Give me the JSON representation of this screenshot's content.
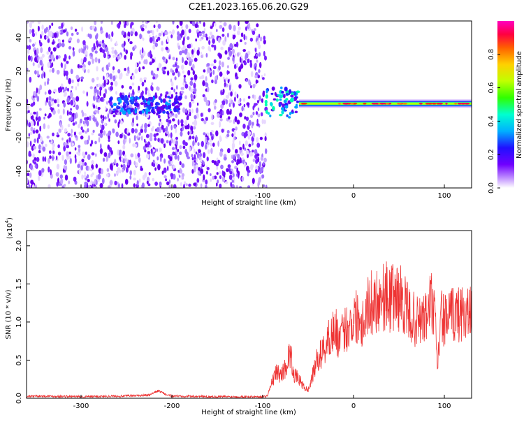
{
  "title": "C2E1.2023.165.06.20.G29",
  "chart_data": [
    {
      "type": "heatmap",
      "ylabel": "Frequency (Hz)",
      "xlabel": "Height of straight line (km)",
      "xlim": [
        -360,
        130
      ],
      "ylim": [
        -50,
        50
      ],
      "x_ticks": [
        -300,
        -200,
        -100,
        0,
        100
      ],
      "y_ticks": [
        -40,
        -20,
        0,
        20,
        40
      ],
      "colorbar": {
        "label": "Normalized spectral amplitude",
        "range": [
          0,
          1
        ],
        "ticks": [
          "0.0",
          "0.2",
          "0.4",
          "0.6",
          "0.8"
        ],
        "colors": [
          "#ffffff",
          "#b070ff",
          "#7000ff",
          "#2010ff",
          "#00b0ff",
          "#00ffc0",
          "#30ff00",
          "#c0ff00",
          "#ffd000",
          "#ff6000",
          "#ff0040",
          "#ff00c0"
        ]
      },
      "regions": [
        {
          "x": [
            -360,
            -96
          ],
          "freq_range": [
            -50,
            50
          ],
          "amplitude": 0.1
        },
        {
          "x": [
            -268,
            -190
          ],
          "freq_range": [
            -5,
            5
          ],
          "amplitude": 0.3
        },
        {
          "x": [
            -97,
            -60
          ],
          "freq_range": [
            -8,
            10
          ],
          "amplitude": 0.45
        },
        {
          "x": [
            -60,
            130
          ],
          "freq_center": 0.5,
          "amplitude": 0.9
        }
      ],
      "grid": false
    },
    {
      "type": "line",
      "ylabel": "SNR (10 * v/v)",
      "y_multiplier": "(x10",
      "y_multiplier_exp": "4",
      "y_multiplier_close": ")",
      "xlabel": "Height of straight line (km)",
      "xlim": [
        -360,
        130
      ],
      "ylim": [
        0,
        2.2
      ],
      "x_ticks": [
        -300,
        -200,
        -100,
        0,
        100
      ],
      "y_ticks": [
        "0.0",
        "0.5",
        "1.0",
        "1.5",
        "2.0"
      ],
      "color": "#ee3333",
      "series": [
        {
          "x": [
            -360,
            -350,
            -300,
            -250,
            -225,
            -215,
            -205,
            -200,
            -150,
            -100,
            -95,
            -90,
            -85,
            -80,
            -75,
            -70,
            -65,
            -60,
            -55,
            -50,
            -45,
            -40,
            -35,
            -30,
            -25,
            -20,
            -15,
            -10,
            -5,
            0,
            5,
            10,
            15,
            20,
            25,
            30,
            35,
            40,
            45,
            50,
            55,
            60,
            65,
            70,
            75,
            80,
            85,
            90,
            92,
            95,
            97,
            100,
            105,
            110,
            115,
            120,
            125,
            130
          ],
          "values": [
            0.02,
            0.03,
            0.02,
            0.03,
            0.04,
            0.1,
            0.04,
            0.03,
            0.02,
            0.02,
            0.03,
            0.2,
            0.35,
            0.3,
            0.4,
            0.6,
            0.3,
            0.25,
            0.15,
            0.1,
            0.3,
            0.5,
            0.6,
            0.7,
            0.85,
            0.9,
            0.75,
            0.9,
            0.95,
            1.05,
            1.1,
            1.0,
            1.2,
            1.25,
            1.3,
            1.32,
            1.35,
            1.3,
            1.35,
            1.32,
            1.28,
            1.1,
            1.05,
            1.0,
            1.02,
            1.05,
            1.3,
            1.0,
            0.4,
            0.8,
            1.1,
            1.0,
            1.05,
            1.1,
            1.1,
            1.15,
            1.1,
            1.08
          ]
        }
      ],
      "grid": false
    }
  ]
}
